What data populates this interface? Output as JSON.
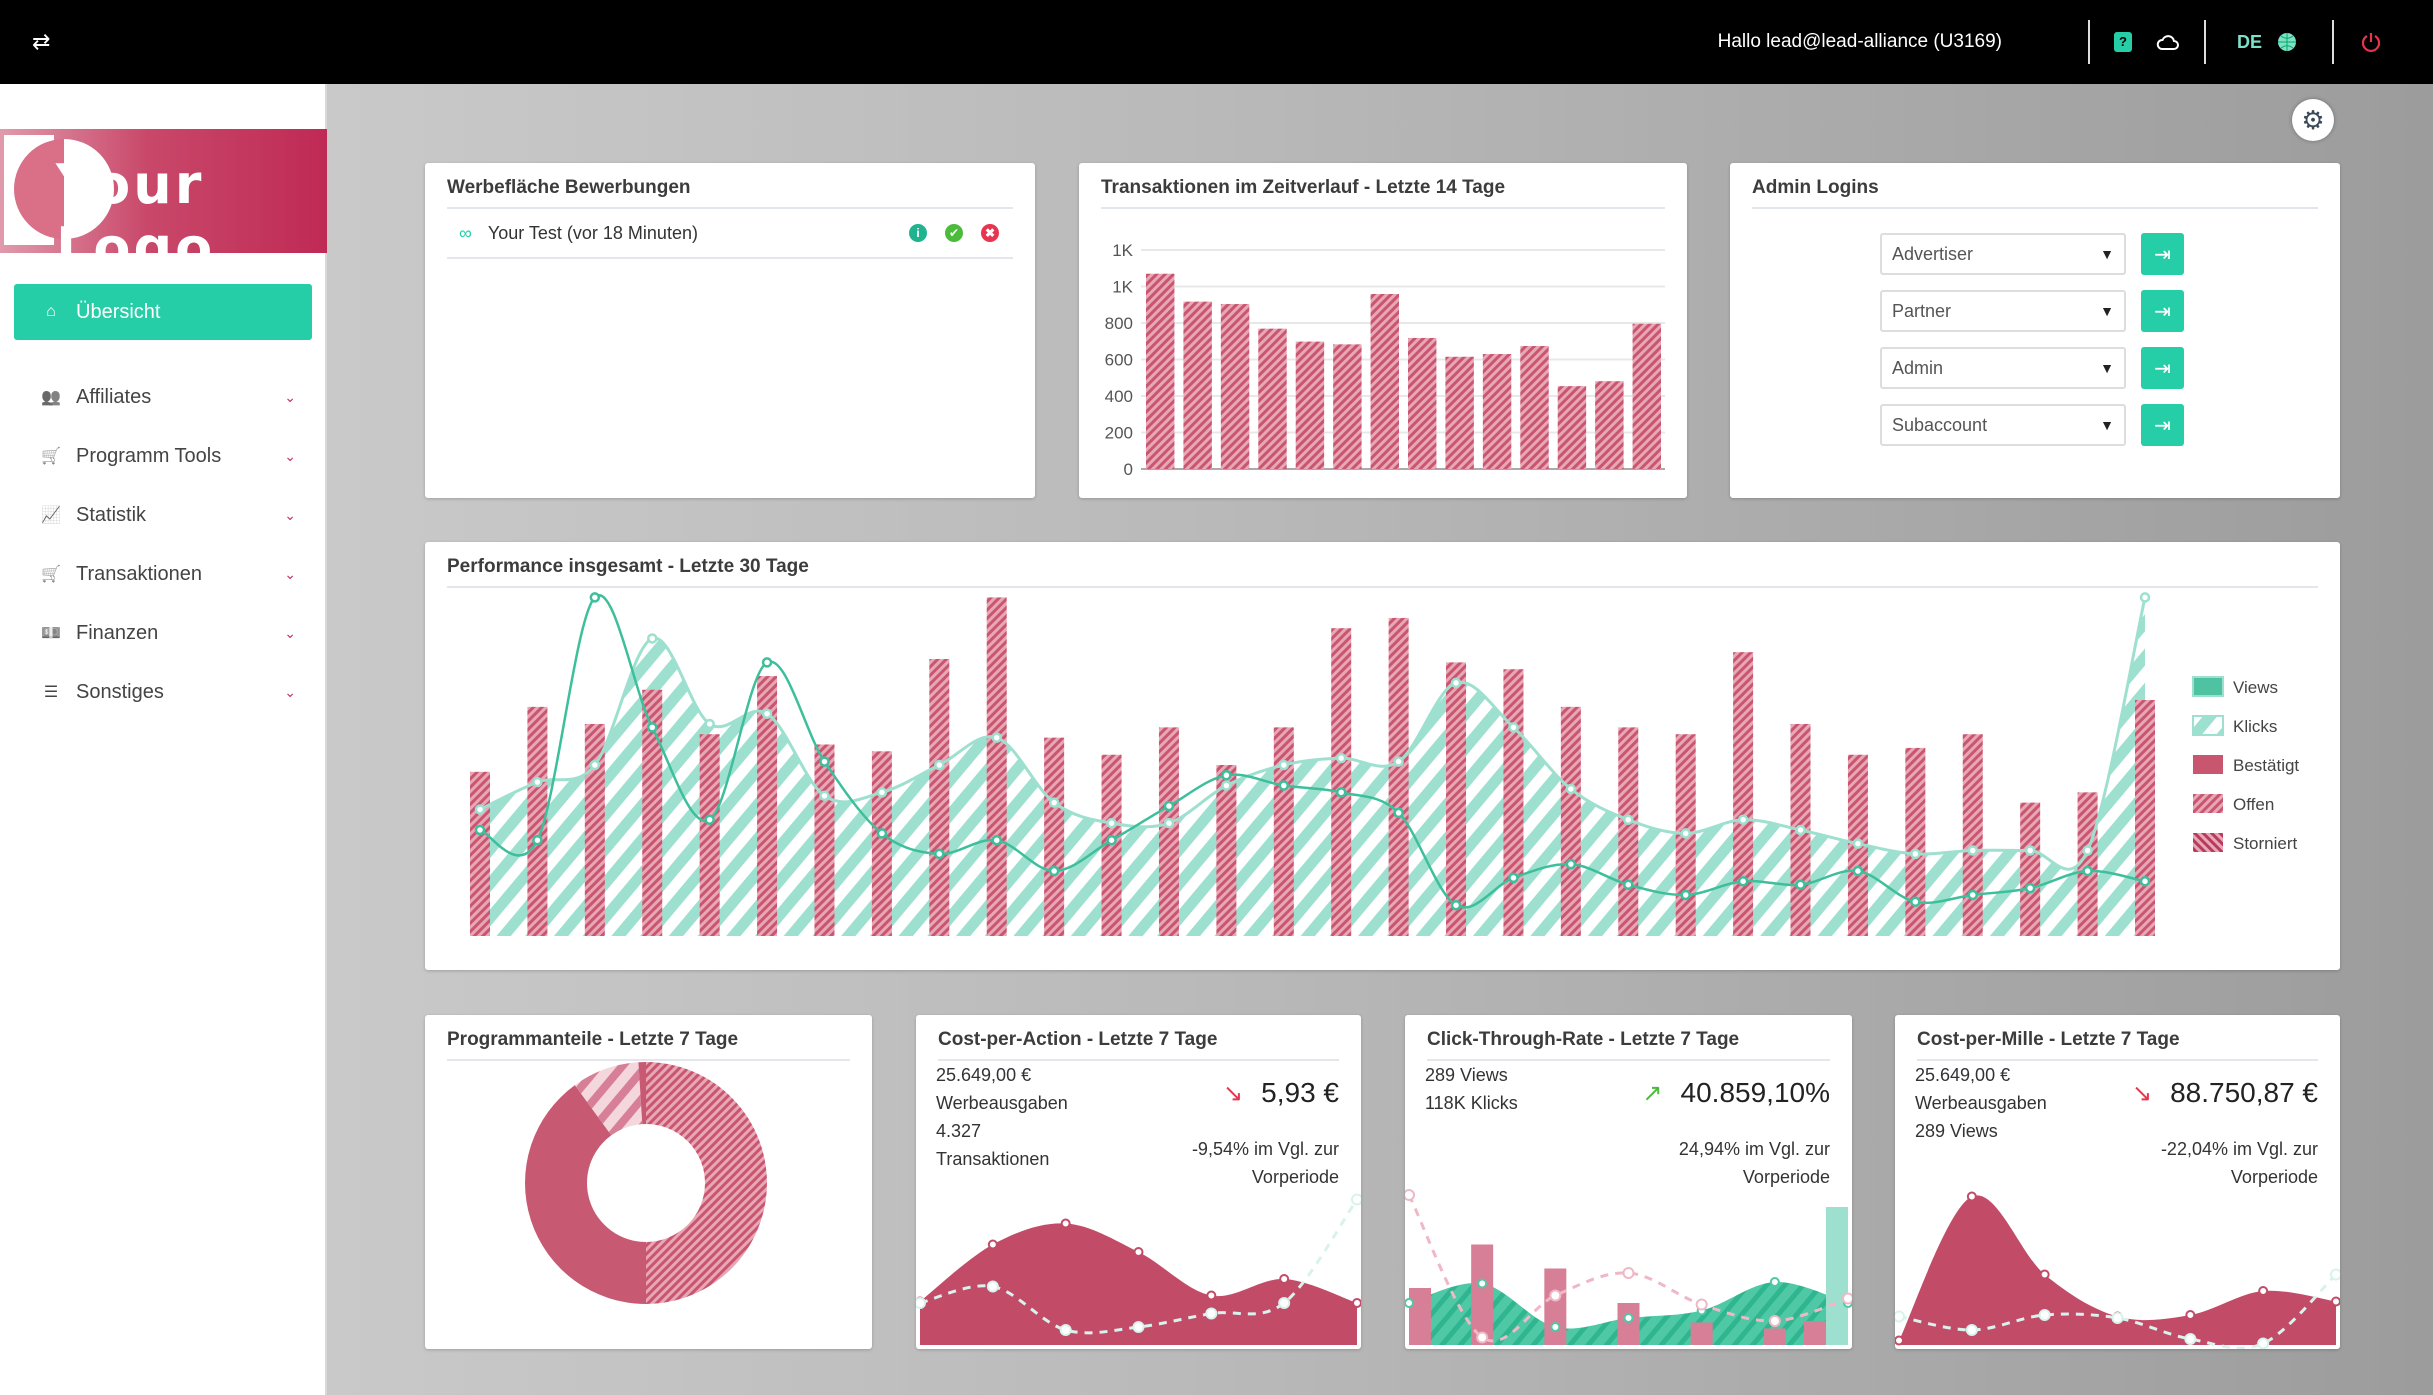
{
  "topbar": {
    "greeting": "Hallo lead@lead-alliance (U3169)",
    "language": "DE",
    "icons": [
      "swap-arrows-icon",
      "help-icon",
      "cloud-icon",
      "globe-icon",
      "power-icon"
    ]
  },
  "logo": {
    "text": "Your Logo"
  },
  "sidebar": {
    "items": [
      {
        "label": "Übersicht",
        "icon": "home-icon",
        "active": true
      },
      {
        "label": "Affiliates",
        "icon": "users-icon"
      },
      {
        "label": "Programm Tools",
        "icon": "cart-icon"
      },
      {
        "label": "Statistik",
        "icon": "chart-line-icon"
      },
      {
        "label": "Transaktionen",
        "icon": "cart-icon"
      },
      {
        "label": "Finanzen",
        "icon": "money-icon"
      },
      {
        "label": "Sonstiges",
        "icon": "list-icon"
      }
    ]
  },
  "colors": {
    "accent": "#26cea8",
    "crimson": "#c24b68",
    "pink": "#d77f96",
    "teal_light": "#9ee0cf",
    "teal": "#44c29f",
    "danger": "#e8344e",
    "success": "#4cbb3c"
  },
  "werbeflaeche": {
    "title": "Werbefläche Bewerbungen",
    "items": [
      {
        "text": "Your Test (vor 18 Minuten)"
      }
    ]
  },
  "admin": {
    "title": "Admin Logins",
    "selects": [
      "Advertiser",
      "Partner",
      "Admin",
      "Subaccount"
    ]
  },
  "chart_data": [
    {
      "type": "bar",
      "title": "Transaktionen im Zeitverlauf - Letzte 14 Tage",
      "yticks": [
        "0",
        "200",
        "400",
        "600",
        "800",
        "1K",
        "1K"
      ],
      "ytick_values": [
        0,
        200,
        400,
        600,
        800,
        1000,
        1200
      ],
      "ylim": [
        0,
        1200
      ],
      "grid": true,
      "values": [
        1070,
        917,
        904,
        769,
        698,
        683,
        959,
        718,
        615,
        630,
        674,
        454,
        481,
        796
      ]
    },
    {
      "type": "bar+area+line",
      "title": "Performance insgesamt - Letzte 30 Tage",
      "legend": [
        "Views",
        "Klicks",
        "Bestätigt",
        "Offen",
        "Storniert"
      ],
      "legend_position": "right",
      "ylim": [
        0,
        100
      ],
      "series": [
        {
          "name": "Offen",
          "type": "bar",
          "values": [
            48,
            67,
            62,
            72,
            59,
            76,
            56,
            54,
            81,
            99,
            58,
            53,
            61,
            50,
            61,
            90,
            93,
            80,
            78,
            67,
            61,
            59,
            83,
            62,
            53,
            55,
            59,
            39,
            42,
            69
          ]
        },
        {
          "name": "Klicks",
          "type": "area",
          "values": [
            37,
            45,
            50,
            87,
            62,
            65,
            41,
            42,
            50,
            58,
            39,
            33,
            33,
            44,
            50,
            52,
            51,
            74,
            61,
            43,
            34,
            30,
            34,
            31,
            27,
            24,
            25,
            25,
            25,
            99
          ]
        },
        {
          "name": "Views",
          "type": "line",
          "values": [
            31,
            28,
            99,
            61,
            34,
            80,
            51,
            30,
            24,
            28,
            19,
            28,
            38,
            47,
            44,
            42,
            36,
            9,
            17,
            21,
            15,
            12,
            16,
            15,
            19,
            10,
            12,
            14,
            19,
            16
          ]
        }
      ]
    },
    {
      "type": "pie",
      "title": "Programmanteile - Letzte 7 Tage",
      "donut": true,
      "values": [
        50,
        40,
        9,
        1
      ]
    },
    {
      "type": "area+line",
      "title": "Cost-per-Action - Letzte 7 Tage",
      "area": [
        29,
        67,
        81,
        62,
        33,
        44,
        28
      ],
      "line": [
        28,
        39,
        10,
        12,
        21,
        28,
        97
      ]
    },
    {
      "type": "bar+area+line",
      "title": "Click-Through-Rate - Letzte 7 Tage",
      "bars": [
        38,
        67,
        51,
        28,
        15,
        11,
        16
      ],
      "area": [
        28,
        41,
        12,
        18,
        23,
        42,
        28
      ],
      "last_bar": 92,
      "line": [
        100,
        5,
        33,
        48,
        27,
        16,
        31
      ]
    },
    {
      "type": "area+line",
      "title": "Cost-per-Mille - Letzte 7 Tage",
      "area": [
        3,
        99,
        47,
        19,
        20,
        36,
        29
      ],
      "line": [
        19,
        10,
        20,
        18,
        4,
        1,
        47
      ]
    }
  ],
  "kpis": {
    "cpa": {
      "lines": [
        "25.649,00 €",
        "Werbeausgaben",
        "4.327",
        "Transaktionen"
      ],
      "value": "5,93 €",
      "trend": "down",
      "compare": "-9,54% im Vgl. zur Vorperiode"
    },
    "ctr": {
      "lines": [
        "289 Views",
        "118K Klicks"
      ],
      "value": "40.859,10%",
      "trend": "up",
      "compare": "24,94% im Vgl. zur Vorperiode"
    },
    "cpm": {
      "lines": [
        "25.649,00 €",
        "Werbeausgaben",
        "289 Views"
      ],
      "value": "88.750,87 €",
      "trend": "down",
      "compare": "-22,04% im Vgl. zur Vorperiode"
    }
  }
}
